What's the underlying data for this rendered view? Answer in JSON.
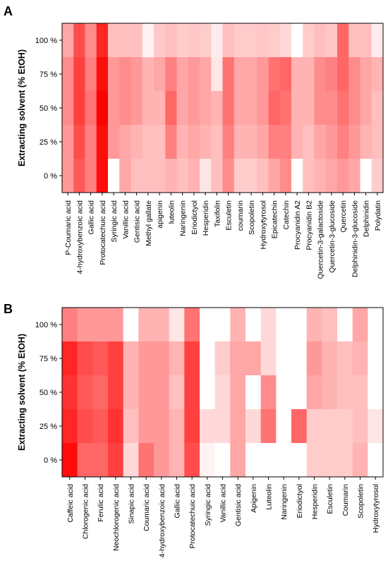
{
  "colors": {
    "cell_max": "#ff0000",
    "cell_min": "#ffffff",
    "axis": "#000000"
  },
  "chart_data": [
    {
      "type": "heatmap",
      "panel_label": "A",
      "ylabel": "Extracting solvent (% EtOH)",
      "rows": [
        "100 %",
        "75 %",
        "50 %",
        "25 %",
        "0 %"
      ],
      "columns": [
        "P-Coumaric acid",
        "4-hydroxybenzoic acid",
        "Gallic acid",
        "Protocatechuic acid",
        "Syringic acid",
        "Vanillic acid",
        "Gentisic acid",
        "Methyl gallate",
        "apigenin",
        "luteolin",
        "Naringenin",
        "Eriodictyol",
        "Hesperidin",
        "Taxifolin",
        "Esculetin",
        "coumarin",
        "Scopoletin",
        "Hydroxytyrosol",
        "Epicatechin",
        "Catechin",
        "Procyanidin A2",
        "Procyanidin B2",
        "Quercetin-3-galactoside",
        "Quercetin-3-glucoside",
        "Quercetin",
        "Delphinidin-3-glucoside",
        "Delphinidin",
        "Polydatin"
      ],
      "values": [
        [
          0.35,
          0.7,
          0.45,
          0.85,
          0.25,
          0.25,
          0.25,
          0.05,
          0.22,
          0.25,
          0.2,
          0.22,
          0.2,
          0.08,
          0.25,
          0.2,
          0.2,
          0.22,
          0.2,
          0.15,
          0.0,
          0.2,
          0.25,
          0.22,
          0.6,
          0.25,
          0.25,
          0.08
        ],
        [
          0.45,
          0.75,
          0.5,
          0.95,
          0.4,
          0.45,
          0.4,
          0.3,
          0.35,
          0.5,
          0.35,
          0.4,
          0.35,
          0.1,
          0.55,
          0.35,
          0.35,
          0.4,
          0.55,
          0.6,
          0.3,
          0.3,
          0.45,
          0.5,
          0.6,
          0.45,
          0.35,
          0.3
        ],
        [
          0.45,
          0.75,
          0.55,
          1.0,
          0.4,
          0.45,
          0.4,
          0.3,
          0.3,
          0.6,
          0.35,
          0.4,
          0.35,
          0.3,
          0.55,
          0.35,
          0.35,
          0.4,
          0.6,
          0.55,
          0.3,
          0.3,
          0.45,
          0.45,
          0.55,
          0.45,
          0.35,
          0.25
        ],
        [
          0.4,
          0.7,
          0.5,
          0.95,
          0.4,
          0.35,
          0.3,
          0.25,
          0.25,
          0.5,
          0.3,
          0.35,
          0.3,
          0.25,
          0.5,
          0.3,
          0.3,
          0.35,
          0.5,
          0.5,
          0.3,
          0.25,
          0.35,
          0.4,
          0.5,
          0.4,
          0.3,
          0.25
        ],
        [
          0.4,
          0.65,
          0.5,
          0.95,
          0.0,
          0.35,
          0.25,
          0.25,
          0.25,
          0.3,
          0.25,
          0.3,
          0.1,
          0.25,
          0.45,
          0.2,
          0.2,
          0.25,
          0.35,
          0.45,
          0.0,
          0.25,
          0.3,
          0.35,
          0.4,
          0.35,
          0.0,
          0.2
        ]
      ]
    },
    {
      "type": "heatmap",
      "panel_label": "B",
      "ylabel": "Extracting solvent (% EtOH)",
      "rows": [
        "100 %",
        "75 %",
        "50 %",
        "25 %",
        "0 %"
      ],
      "columns": [
        "Caffeic acid",
        "Chlorogenic acid",
        "Ferulic acid",
        "Neochlorogenic acid",
        "Sinapic acid",
        "Coumaric acid",
        "4-hydroxybenzoic acid",
        "Gallic acid",
        "Protocatechuic acid",
        "Syringic acid",
        "Vanillic acid",
        "Gentisic acid",
        "Apigenin",
        "Luteolin",
        "Naringenin",
        "Eriodictyol",
        "Hesperidin",
        "Esculetin",
        "Coumarin",
        "Scopoletin",
        "Hydroxytyrosol"
      ],
      "values": [
        [
          0.5,
          0.4,
          0.4,
          0.4,
          0.0,
          0.3,
          0.3,
          0.1,
          0.55,
          0.0,
          0.0,
          0.3,
          0.0,
          0.15,
          0.0,
          0.0,
          0.3,
          0.25,
          0.0,
          0.35,
          0.0
        ],
        [
          0.85,
          0.7,
          0.65,
          0.75,
          0.3,
          0.4,
          0.4,
          0.3,
          0.75,
          0.0,
          0.2,
          0.35,
          0.35,
          0.15,
          0.0,
          0.0,
          0.4,
          0.3,
          0.25,
          0.3,
          0.0
        ],
        [
          0.8,
          0.65,
          0.6,
          0.75,
          0.3,
          0.4,
          0.4,
          0.25,
          0.75,
          0.0,
          0.15,
          0.35,
          0.0,
          0.45,
          0.0,
          0.0,
          0.35,
          0.3,
          0.25,
          0.25,
          0.0
        ],
        [
          0.85,
          0.7,
          0.65,
          0.8,
          0.25,
          0.4,
          0.4,
          0.3,
          0.75,
          0.15,
          0.15,
          0.35,
          0.15,
          0.55,
          0.0,
          0.6,
          0.2,
          0.2,
          0.2,
          0.25,
          0.1
        ],
        [
          0.95,
          0.6,
          0.6,
          0.75,
          0.15,
          0.55,
          0.4,
          0.3,
          0.7,
          0.05,
          0.0,
          0.35,
          0.0,
          0.0,
          0.0,
          0.0,
          0.2,
          0.2,
          0.2,
          0.3,
          0.0
        ]
      ]
    }
  ]
}
